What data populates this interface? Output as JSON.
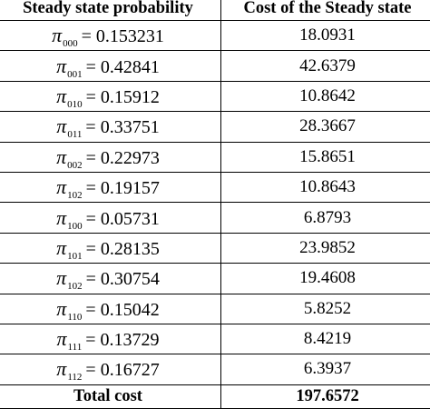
{
  "headers": {
    "probability": "Steady state probability",
    "cost": "Cost of the Steady state"
  },
  "symbol": "π",
  "equals": "=",
  "rows": [
    {
      "sub": "000",
      "prob": "0.153231",
      "cost": "18.0931"
    },
    {
      "sub": "001",
      "prob": "0.42841",
      "cost": "42.6379"
    },
    {
      "sub": "010",
      "prob": "0.15912",
      "cost": "10.8642"
    },
    {
      "sub": "011",
      "prob": "0.33751",
      "cost": "28.3667"
    },
    {
      "sub": "002",
      "prob": "0.22973",
      "cost": "15.8651"
    },
    {
      "sub": "102",
      "prob": "0.19157",
      "cost": "10.8643"
    },
    {
      "sub": "100",
      "prob": "0.05731",
      "cost": "6.8793"
    },
    {
      "sub": "101",
      "prob": "0.28135",
      "cost": "23.9852"
    },
    {
      "sub": "102",
      "prob": "0.30754",
      "cost": "19.4608"
    },
    {
      "sub": "110",
      "prob": "0.15042",
      "cost": "5.8252"
    },
    {
      "sub": "111",
      "prob": "0.13729",
      "cost": "8.4219"
    },
    {
      "sub": "112",
      "prob": "0.16727",
      "cost": "6.3937"
    }
  ],
  "total": {
    "label": "Total cost",
    "value": "197.6572"
  }
}
